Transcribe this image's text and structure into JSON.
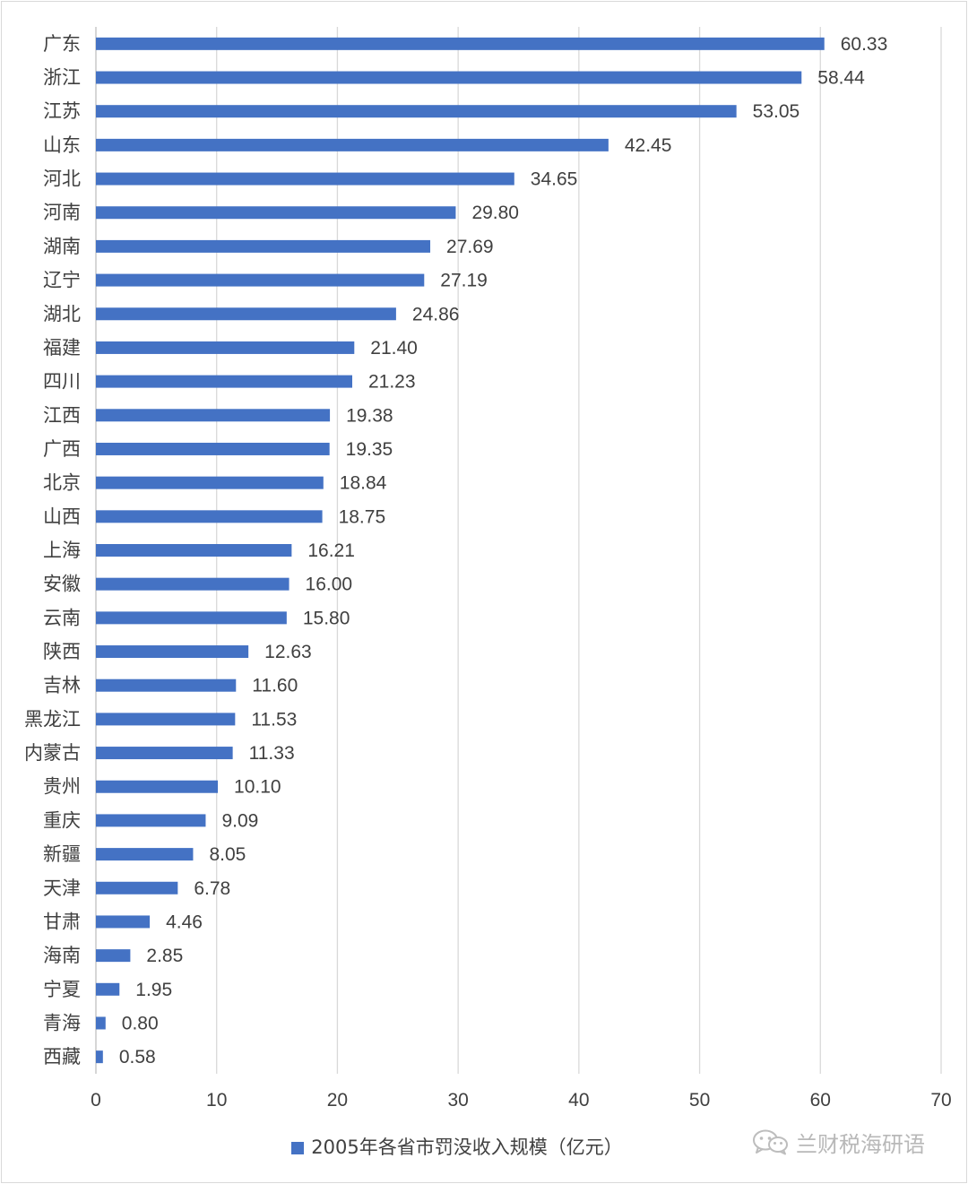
{
  "chart_data": {
    "type": "bar",
    "orientation": "horizontal",
    "categories": [
      "广东",
      "浙江",
      "江苏",
      "山东",
      "河北",
      "河南",
      "湖南",
      "辽宁",
      "湖北",
      "福建",
      "四川",
      "江西",
      "广西",
      "北京",
      "山西",
      "上海",
      "安徽",
      "云南",
      "陕西",
      "吉林",
      "黑龙江",
      "内蒙古",
      "贵州",
      "重庆",
      "新疆",
      "天津",
      "甘肃",
      "海南",
      "宁夏",
      "青海",
      "西藏"
    ],
    "values": [
      60.33,
      58.44,
      53.05,
      42.45,
      34.65,
      29.8,
      27.69,
      27.19,
      24.86,
      21.4,
      21.23,
      19.38,
      19.35,
      18.84,
      18.75,
      16.21,
      16.0,
      15.8,
      12.63,
      11.6,
      11.53,
      11.33,
      10.1,
      9.09,
      8.05,
      6.78,
      4.46,
      2.85,
      1.95,
      0.8,
      0.58
    ],
    "value_labels": [
      "60.33",
      "58.44",
      "53.05",
      "42.45",
      "34.65",
      "29.80",
      "27.69",
      "27.19",
      "24.86",
      "21.40",
      "21.23",
      "19.38",
      "19.35",
      "18.84",
      "18.75",
      "16.21",
      "16.00",
      "15.80",
      "12.63",
      "11.60",
      "11.53",
      "11.33",
      "10.10",
      "9.09",
      "8.05",
      "6.78",
      "4.46",
      "2.85",
      "1.95",
      "0.80",
      "0.58"
    ],
    "highlight_category": "甘肃",
    "xlim": [
      0,
      70
    ],
    "xticks": [
      "0",
      "10",
      "20",
      "30",
      "40",
      "50",
      "60",
      "70"
    ],
    "grid": "vertical",
    "legend_position": "bottom",
    "series_name": "2005年各省市罚没收入规模（亿元）",
    "bar_color": "#4472c4",
    "highlight_label_color": "#ff0000",
    "label_color": "#404040"
  },
  "watermark": {
    "icon": "wechat-icon",
    "text": "兰财税海研语"
  }
}
